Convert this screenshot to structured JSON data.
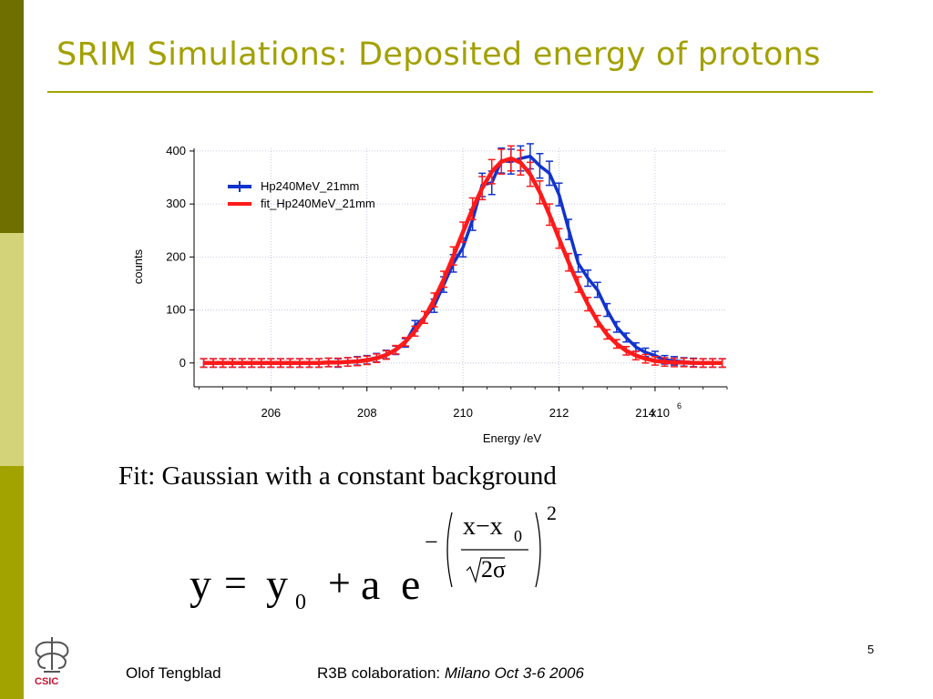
{
  "slide": {
    "title": "SRIM Simulations: Deposited energy of protons",
    "fit_caption": "Fit: Gaussian with a constant background",
    "page_number": "5",
    "footer": {
      "author": "Olof Tengblad",
      "event_prefix": "R3B colaboration:",
      "event_detail": "Milano  Oct 3-6  2006"
    },
    "logo_text": "CSIC",
    "formula": {
      "lhs": "y",
      "equals": "=",
      "y0_base": "y",
      "y0_sub": "0",
      "plus": "+",
      "a": "a",
      "e": "e",
      "minus": "−",
      "numerator": "x−x",
      "x0_sub": "0",
      "denominator": "2σ",
      "sqrt": "√",
      "exponent": "2"
    },
    "colors": {
      "accent": "#a3a000",
      "side_dark": "#6f6f00",
      "side_light": "#d3d37a",
      "side_mid": "#a3a300"
    }
  },
  "chart_data": {
    "type": "line",
    "xlabel": "Energy /eV",
    "ylabel": "counts",
    "x_multiplier_label": "x10",
    "x_multiplier_exp": "6",
    "xlim": [
      204.4,
      215.5
    ],
    "ylim": [
      -45,
      405
    ],
    "x_ticks": [
      206,
      208,
      210,
      212,
      214
    ],
    "x_tick_labels": [
      "206",
      "208",
      "210",
      "212",
      "214"
    ],
    "y_ticks": [
      0,
      100,
      200,
      300,
      400
    ],
    "y_tick_labels": [
      "0",
      "100",
      "200",
      "300",
      "400"
    ],
    "grid": true,
    "legend_position": "top-left",
    "series": [
      {
        "name": "Hp240MeV_21mm",
        "color": "#1133cc",
        "x": [
          204.6,
          204.8,
          205.0,
          205.2,
          205.4,
          205.6,
          205.8,
          206.0,
          206.2,
          206.4,
          206.6,
          206.8,
          207.0,
          207.2,
          207.4,
          207.6,
          207.8,
          208.0,
          208.2,
          208.4,
          208.6,
          208.8,
          209.0,
          209.2,
          209.4,
          209.6,
          209.8,
          210.0,
          210.2,
          210.4,
          210.6,
          210.8,
          211.0,
          211.2,
          211.4,
          211.6,
          211.8,
          212.0,
          212.2,
          212.4,
          212.6,
          212.8,
          213.0,
          213.2,
          213.4,
          213.6,
          213.8,
          214.0,
          214.2,
          214.4,
          214.6,
          214.8,
          215.0,
          215.2,
          215.4
        ],
        "values": [
          0,
          0,
          0,
          0,
          0,
          0,
          0,
          0,
          0,
          0,
          0,
          0,
          0,
          1,
          0,
          2,
          4,
          6,
          10,
          16,
          24,
          38,
          70,
          86,
          108,
          148,
          188,
          218,
          270,
          336,
          340,
          382,
          380,
          386,
          390,
          372,
          358,
          318,
          252,
          188,
          160,
          138,
          100,
          68,
          48,
          30,
          20,
          14,
          6,
          4,
          2,
          1,
          0,
          0,
          0
        ],
        "error_bars": true
      },
      {
        "name": "fit_Hp240MeV_21mm",
        "color": "#ff1a1a",
        "x": [
          204.6,
          204.8,
          205.0,
          205.2,
          205.4,
          205.6,
          205.8,
          206.0,
          206.2,
          206.4,
          206.6,
          206.8,
          207.0,
          207.2,
          207.4,
          207.6,
          207.8,
          208.0,
          208.2,
          208.4,
          208.6,
          208.8,
          209.0,
          209.2,
          209.4,
          209.6,
          209.8,
          210.0,
          210.2,
          210.4,
          210.6,
          210.8,
          211.0,
          211.2,
          211.4,
          211.6,
          211.8,
          212.0,
          212.2,
          212.4,
          212.6,
          212.8,
          213.0,
          213.2,
          213.4,
          213.6,
          213.8,
          214.0,
          214.2,
          214.4,
          214.6,
          214.8,
          215.0,
          215.2,
          215.4
        ],
        "values": [
          0,
          0,
          0,
          0,
          0,
          0,
          0,
          0,
          0,
          0,
          0,
          0,
          0,
          1,
          1,
          2,
          3,
          5,
          9,
          15,
          25,
          40,
          60,
          86,
          119,
          158,
          202,
          247,
          291,
          330,
          361,
          380,
          386,
          378,
          356,
          322,
          280,
          235,
          190,
          148,
          111,
          79,
          54,
          36,
          23,
          14,
          8,
          4,
          2,
          1,
          1,
          0,
          0,
          0,
          0
        ],
        "error_bars": true
      }
    ]
  }
}
